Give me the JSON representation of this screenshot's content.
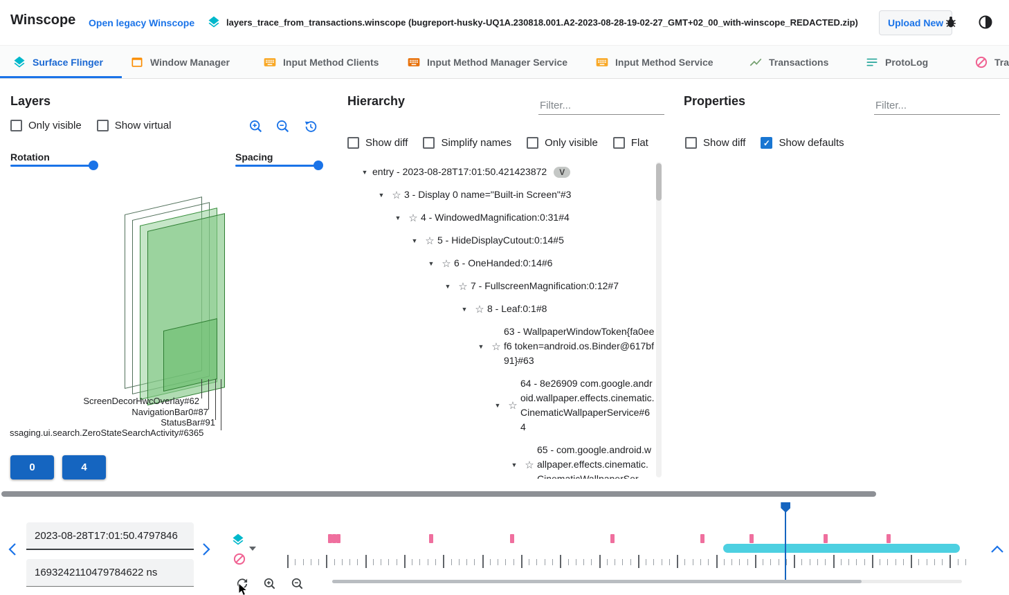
{
  "header": {
    "app_title": "Winscope",
    "legacy_link": "Open legacy Winscope",
    "trace_file": "layers_trace_from_transactions.winscope (bugreport-husky-UQ1A.230818.001.A2-2023-08-28-19-02-27_GMT+02_00_with-winscope_REDACTED.zip)",
    "upload_button": "Upload New"
  },
  "tabs": [
    {
      "label": "Surface Flinger",
      "active": true
    },
    {
      "label": "Window Manager",
      "active": false
    },
    {
      "label": "Input Method Clients",
      "active": false
    },
    {
      "label": "Input Method Manager Service",
      "active": false
    },
    {
      "label": "Input Method Service",
      "active": false
    },
    {
      "label": "Transactions",
      "active": false
    },
    {
      "label": "ProtoLog",
      "active": false
    },
    {
      "label": "Tra",
      "active": false
    }
  ],
  "layers_panel": {
    "title": "Layers",
    "only_visible_label": "Only visible",
    "show_virtual_label": "Show virtual",
    "rotation_label": "Rotation",
    "spacing_label": "Spacing",
    "layer_labels": [
      "ScreenDecorHwcOverlay#62",
      "NavigationBar0#87",
      "StatusBar#91",
      "ssaging.ui.search.ZeroStateSearchActivity#6365"
    ],
    "display_buttons": [
      "0",
      "4"
    ]
  },
  "hierarchy_panel": {
    "title": "Hierarchy",
    "filter_placeholder": "Filter...",
    "options": [
      "Show diff",
      "Simplify names",
      "Only visible",
      "Flat"
    ],
    "tree": [
      {
        "label": "entry - 2023-08-28T17:01:50.421423872",
        "badge": "V"
      },
      {
        "label": "3 - Display 0 name=\"Built-in Screen\"#3"
      },
      {
        "label": "4 - WindowedMagnification:0:31#4"
      },
      {
        "label": "5 - HideDisplayCutout:0:14#5"
      },
      {
        "label": "6 - OneHanded:0:14#6"
      },
      {
        "label": "7 - FullscreenMagnification:0:12#7"
      },
      {
        "label": "8 - Leaf:0:1#8"
      },
      {
        "label": "63 - WallpaperWindowToken{fa0eef6 token=android.os.Binder@617bf91}#63"
      },
      {
        "label": "64 - 8e26909 com.google.android.wallpaper.effects.cinematic.CinematicWallpaperService#64"
      },
      {
        "label": "65 - com.google.android.wallpaper.effects.cinematic.CinematicWallpaperSer"
      }
    ]
  },
  "properties_panel": {
    "title": "Properties",
    "filter_placeholder": "Filter...",
    "show_diff_label": "Show diff",
    "show_defaults_label": "Show defaults"
  },
  "timeline": {
    "timestamp_human": "2023-08-28T17:01:50.4797846",
    "timestamp_ns": "1693242110479784622 ns",
    "marks_pct": [
      6.0,
      6.6,
      7.2,
      20.9,
      32.9,
      47.7,
      60.9,
      68.2,
      79.1,
      88.4
    ],
    "selection_start_pct": 64.3,
    "selection_end_pct": 99.2,
    "cursor_pct": 73.5,
    "ruler_tick_count": 88,
    "ruler_major_every": 5
  },
  "colors": {
    "accent_blue": "#1a73e8",
    "teal": "#00b8cb",
    "pink": "#f06292",
    "cyan": "#4dd0e1",
    "layer_green": "#81c784"
  }
}
